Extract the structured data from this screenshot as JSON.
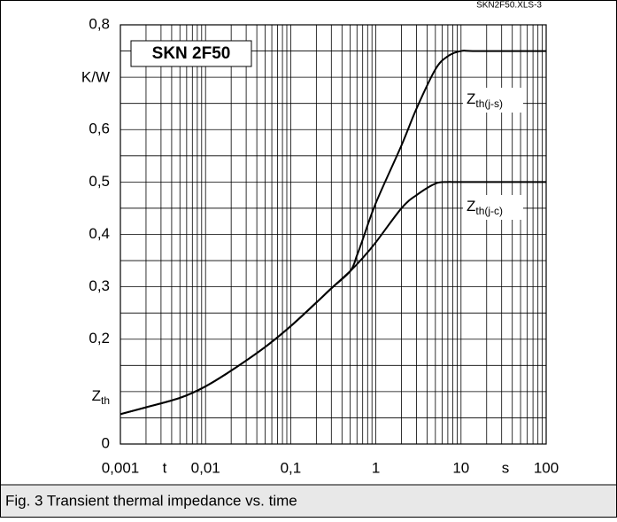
{
  "chart_data": {
    "type": "line",
    "title": "SKN 2F50",
    "file_note": "SKN2F50.XLS-3",
    "caption": "Fig. 3 Transient thermal impedance vs. time",
    "xlabel": "t",
    "xunit": "s",
    "ylabel_main": "Z",
    "ylabel_sub": "th",
    "yunit": "K/W",
    "xscale": "log",
    "xlim": [
      0.001,
      100
    ],
    "ylim": [
      0,
      0.8
    ],
    "xticks": [
      {
        "value": 0.001,
        "label": "0,001"
      },
      {
        "value": 0.01,
        "label": "0,01"
      },
      {
        "value": 0.1,
        "label": "0,1"
      },
      1,
      10,
      100
    ],
    "yticks": [
      0,
      {
        "value": 0.2,
        "label": "0,2"
      },
      {
        "value": 0.3,
        "label": "0,3"
      },
      {
        "value": 0.4,
        "label": "0,4"
      },
      {
        "value": 0.5,
        "label": "0,5"
      },
      {
        "value": 0.6,
        "label": "0,6"
      },
      {
        "value": 0.8,
        "label": "0,8"
      }
    ],
    "grid": true,
    "xgrid": [
      0.001,
      0.002,
      0.003,
      0.004,
      0.005,
      0.006,
      0.007,
      0.008,
      0.009,
      0.01,
      0.02,
      0.03,
      0.04,
      0.05,
      0.06,
      0.07,
      0.08,
      0.09,
      0.1,
      0.2,
      0.3,
      0.4,
      0.5,
      0.6,
      0.7,
      0.8,
      0.9,
      1,
      2,
      3,
      4,
      5,
      6,
      7,
      8,
      9,
      10,
      20,
      30,
      40,
      50,
      60,
      70,
      80,
      90,
      100
    ],
    "ygrid": [
      0,
      0.05,
      0.1,
      0.15,
      0.2,
      0.25,
      0.3,
      0.35,
      0.4,
      0.45,
      0.5,
      0.55,
      0.6,
      0.65,
      0.7,
      0.75,
      0.8
    ],
    "series": [
      {
        "name_main": "Z",
        "name_sub": "th(j-s)",
        "color": "#000000",
        "x": [
          0.001,
          0.002,
          0.005,
          0.01,
          0.02,
          0.05,
          0.1,
          0.2,
          0.3,
          0.5,
          0.6,
          0.7,
          1,
          2,
          3,
          5,
          7,
          10,
          15,
          100
        ],
        "values": [
          0.057,
          0.07,
          0.088,
          0.11,
          0.14,
          0.185,
          0.225,
          0.27,
          0.297,
          0.33,
          0.36,
          0.39,
          0.46,
          0.57,
          0.64,
          0.715,
          0.74,
          0.75,
          0.75,
          0.75
        ]
      },
      {
        "name_main": "Z",
        "name_sub": "th(j-c)",
        "color": "#000000",
        "x": [
          0.001,
          0.002,
          0.005,
          0.01,
          0.02,
          0.05,
          0.1,
          0.2,
          0.3,
          0.5,
          0.7,
          1,
          2,
          3,
          5,
          7,
          10,
          100
        ],
        "values": [
          0.057,
          0.07,
          0.088,
          0.11,
          0.14,
          0.185,
          0.225,
          0.27,
          0.297,
          0.33,
          0.355,
          0.385,
          0.45,
          0.475,
          0.497,
          0.5,
          0.5,
          0.5
        ]
      }
    ]
  }
}
